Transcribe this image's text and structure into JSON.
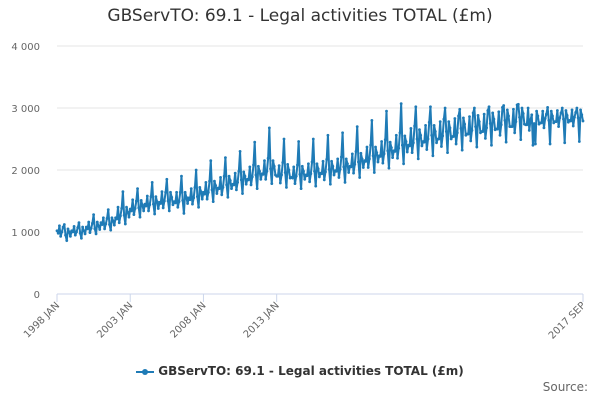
{
  "chart_data": {
    "type": "line",
    "title": "GBServTO: 69.1 - Legal activities TOTAL (£m)",
    "xlabel": "",
    "ylabel": "",
    "ylim": [
      0,
      4000
    ],
    "y_ticks": [
      "0",
      "1 000",
      "2 000",
      "3 000",
      "4 000"
    ],
    "x_range": [
      "1998 JAN",
      "2017 SEP"
    ],
    "x_ticks": [
      "1998 JAN",
      "2003 JAN",
      "2008 JAN",
      "2013 JAN",
      "2017 SEP"
    ],
    "grid": true,
    "legend_position": "bottom",
    "frequency": "monthly",
    "series": [
      {
        "name": "GBServTO: 69.1 - Legal activities TOTAL (£m)",
        "color": "#1f7bb6",
        "values": [
          1020,
          980,
          1100,
          930,
          1000,
          1080,
          1120,
          950,
          860,
          1050,
          1000,
          930,
          1020,
          1000,
          1090,
          950,
          1000,
          1070,
          1150,
          980,
          900,
          1080,
          1020,
          970,
          1080,
          1050,
          1160,
          990,
          1060,
          1140,
          1280,
          1050,
          970,
          1160,
          1100,
          1040,
          1150,
          1120,
          1230,
          1050,
          1130,
          1220,
          1360,
          1120,
          1030,
          1230,
          1180,
          1110,
          1230,
          1210,
          1400,
          1150,
          1260,
          1380,
          1650,
          1270,
          1130,
          1400,
          1320,
          1240,
          1370,
          1340,
          1520,
          1280,
          1380,
          1500,
          1700,
          1390,
          1240,
          1510,
          1430,
          1340,
          1450,
          1420,
          1580,
          1340,
          1440,
          1570,
          1800,
          1450,
          1290,
          1570,
          1490,
          1380,
          1480,
          1460,
          1650,
          1390,
          1500,
          1640,
          1850,
          1500,
          1340,
          1640,
          1560,
          1440,
          1490,
          1470,
          1640,
          1400,
          1490,
          1640,
          1900,
          1510,
          1300,
          1640,
          1560,
          1460,
          1550,
          1520,
          1700,
          1450,
          1550,
          1720,
          2000,
          1570,
          1400,
          1720,
          1650,
          1530,
          1640,
          1610,
          1800,
          1530,
          1640,
          1820,
          2150,
          1680,
          1490,
          1820,
          1750,
          1620,
          1710,
          1700,
          1880,
          1600,
          1720,
          1900,
          2200,
          1760,
          1560,
          1900,
          1830,
          1700,
          1770,
          1760,
          1950,
          1680,
          1800,
          1980,
          2300,
          1840,
          1620,
          1970,
          1900,
          1770,
          1850,
          1840,
          2050,
          1760,
          1890,
          2080,
          2450,
          1920,
          1700,
          2060,
          1980,
          1850,
          1940,
          1930,
          2150,
          1850,
          1980,
          2190,
          2680,
          2020,
          1780,
          2150,
          2060,
          1920,
          1900,
          1900,
          2070,
          1790,
          1920,
          2120,
          2500,
          1960,
          1720,
          2090,
          2000,
          1870,
          1880,
          1870,
          2050,
          1780,
          1900,
          2080,
          2460,
          1930,
          1700,
          2060,
          1980,
          1850,
          1920,
          1910,
          2100,
          1810,
          1940,
          2130,
          2500,
          1980,
          1740,
          2100,
          2020,
          1890,
          1950,
          1940,
          2140,
          1840,
          1970,
          2170,
          2560,
          2010,
          1770,
          2140,
          2060,
          1920,
          1990,
          1980,
          2180,
          1880,
          2010,
          2210,
          2600,
          2050,
          1800,
          2180,
          2100,
          1960,
          2060,
          2050,
          2260,
          1950,
          2090,
          2300,
          2700,
          2130,
          1880,
          2270,
          2180,
          2040,
          2150,
          2140,
          2370,
          2040,
          2180,
          2400,
          2800,
          2230,
          1960,
          2370,
          2280,
          2130,
          2230,
          2220,
          2460,
          2110,
          2260,
          2490,
          2950,
          2310,
          2030,
          2450,
          2360,
          2200,
          2310,
          2300,
          2560,
          2190,
          2350,
          2600,
          3070,
          2400,
          2100,
          2550,
          2460,
          2290,
          2400,
          2390,
          2670,
          2280,
          2440,
          2710,
          3020,
          2500,
          2180,
          2650,
          2560,
          2390,
          2460,
          2450,
          2720,
          2330,
          2500,
          2770,
          3020,
          2560,
          2230,
          2720,
          2620,
          2440,
          2500,
          2500,
          2780,
          2380,
          2550,
          2820,
          3000,
          2620,
          2280,
          2780,
          2680,
          2500,
          2540,
          2540,
          2830,
          2420,
          2600,
          2870,
          2980,
          2670,
          2320,
          2840,
          2740,
          2560,
          2580,
          2580,
          2860,
          2470,
          2640,
          2920,
          3000,
          2700,
          2370,
          2880,
          2780,
          2600,
          2620,
          2620,
          2900,
          2510,
          2680,
          2960,
          3020,
          2750,
          2400,
          2920,
          2820,
          2650,
          2660,
          2660,
          2940,
          2560,
          2730,
          3010,
          3040,
          2800,
          2450,
          2970,
          2870,
          2700,
          2700,
          2700,
          2980,
          2600,
          2780,
          3050,
          3060,
          2850,
          2490,
          3000,
          2910,
          2740,
          2730,
          2730,
          3000,
          2640,
          2810,
          2890,
          2400,
          2750,
          2420,
          2950,
          2870,
          2740,
          2760,
          2760,
          2950,
          2680,
          2830,
          2900,
          3010,
          2800,
          2420,
          2950,
          2870,
          2760,
          2780,
          2780,
          2960,
          2700,
          2840,
          2920,
          3000,
          2820,
          2440,
          2960,
          2880,
          2770,
          2800,
          2790,
          2970,
          2710,
          2850,
          2930,
          3000,
          2840,
          2460,
          2970,
          2890,
          2790
        ]
      }
    ]
  },
  "credit": "Source:"
}
